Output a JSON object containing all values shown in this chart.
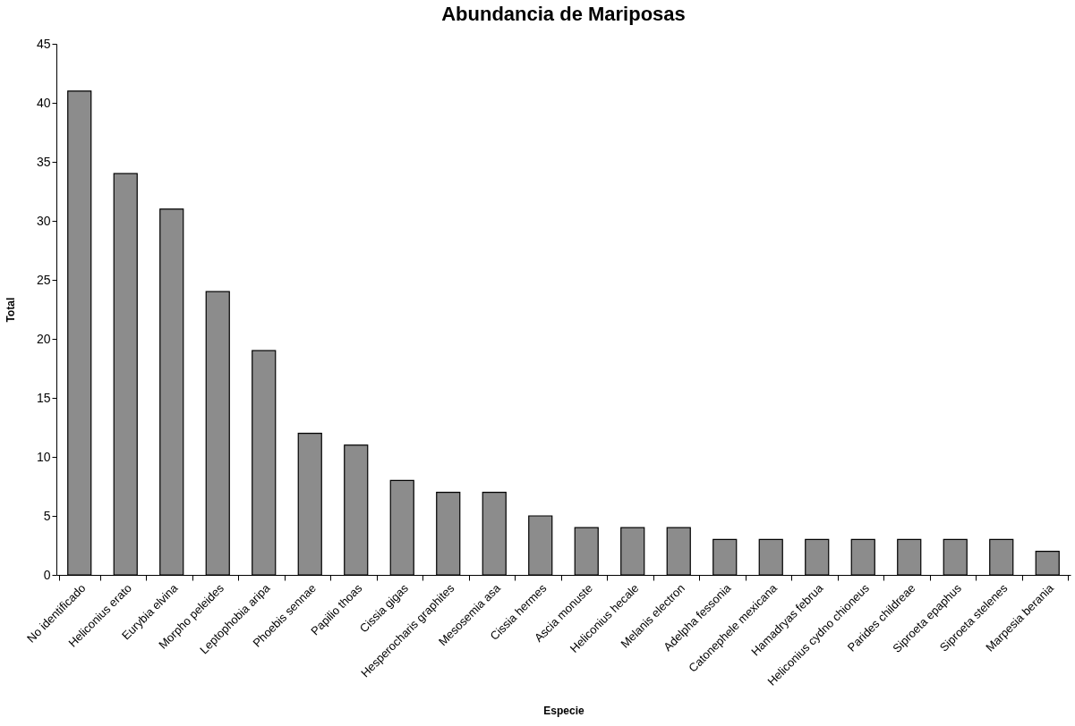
{
  "chart_data": {
    "type": "bar",
    "title": "Abundancia de Mariposas",
    "xlabel": "Especie",
    "ylabel": "Total",
    "categories": [
      "No identificado",
      "Heliconius erato",
      "Eurybia elvina",
      "Morpho peleides",
      "Leptophobia aripa",
      "Phoebis sennae",
      "Papilio thoas",
      "Cissia gigas",
      "Hesperocharis graphites",
      "Mesosemia asa",
      "Cissia hermes",
      "Ascia monuste",
      "Heliconius hecale",
      "Melanis electron",
      "Adelpha fessonia",
      "Catonephele mexicana",
      "Hamadryas februa",
      "Heliconius cydno chioneus",
      "Parides childreae",
      "Siproeta epaphus",
      "Siproeta stelenes",
      "Marpesia berania"
    ],
    "values": [
      41,
      34,
      31,
      24,
      19,
      12,
      11,
      8,
      7,
      7,
      5,
      4,
      4,
      4,
      3,
      3,
      3,
      3,
      3,
      3,
      3,
      2
    ],
    "color": "#8c8c8c",
    "ylim": [
      0,
      45
    ],
    "yticks": [
      0,
      5,
      10,
      15,
      20,
      25,
      30,
      35,
      40,
      45
    ],
    "grid": false
  }
}
